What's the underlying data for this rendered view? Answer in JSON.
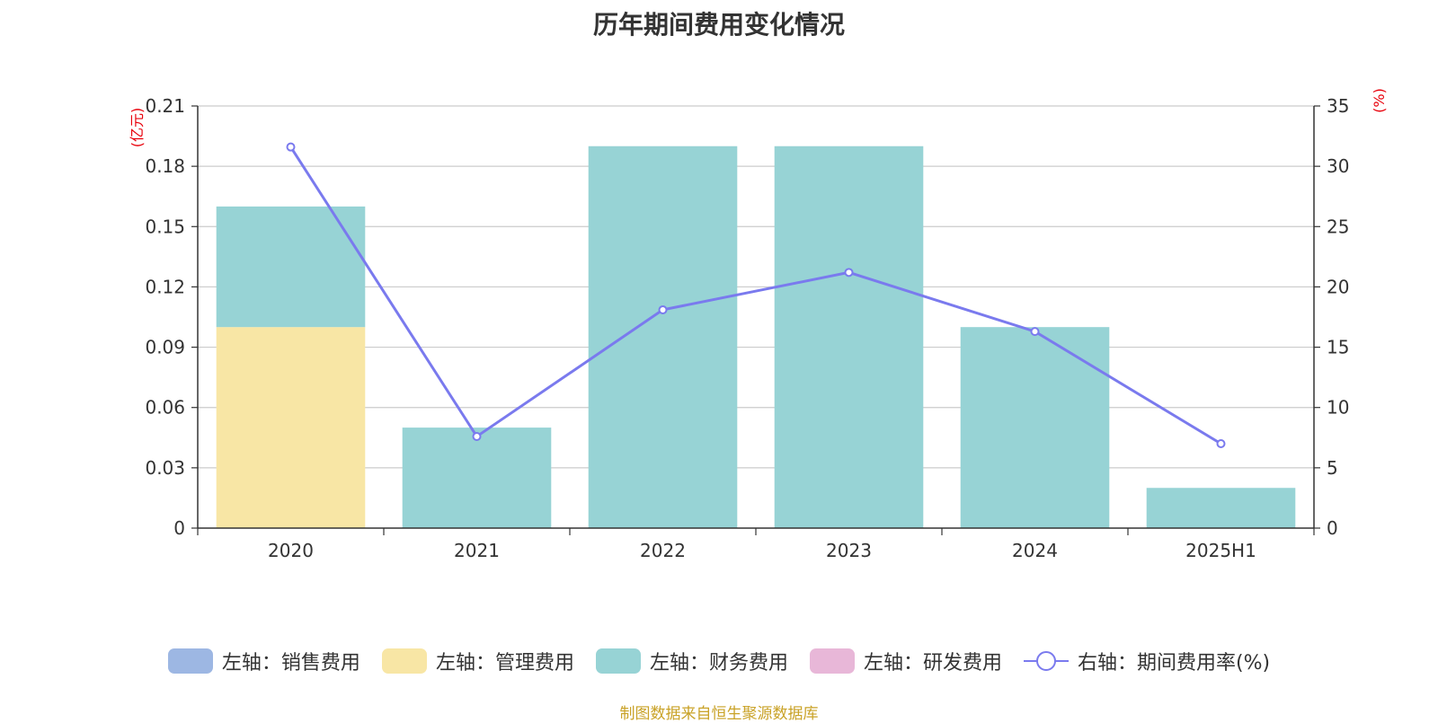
{
  "chart_data": {
    "type": "bar",
    "title": "历年期间费用变化情况",
    "categories": [
      "2020",
      "2021",
      "2022",
      "2023",
      "2024",
      "2025H1"
    ],
    "left_axis": {
      "unit": "(亿元)",
      "ylim": [
        0,
        0.21
      ],
      "ticks": [
        0,
        0.03,
        0.06,
        0.09,
        0.12,
        0.15,
        0.18,
        0.21
      ],
      "tick_labels": [
        "0",
        "0.03",
        "0.06",
        "0.09",
        "0.12",
        "0.15",
        "0.18",
        "0.21"
      ]
    },
    "right_axis": {
      "unit": "(%)",
      "ylim": [
        0,
        35
      ],
      "ticks": [
        0,
        5,
        10,
        15,
        20,
        25,
        30,
        35
      ],
      "tick_labels": [
        "0",
        "5",
        "10",
        "15",
        "20",
        "25",
        "30",
        "35"
      ]
    },
    "bar_series": [
      {
        "name": "左轴：销售费用",
        "color": "#9db7e3",
        "values": [
          0,
          0,
          0,
          0,
          0,
          0
        ]
      },
      {
        "name": "左轴：管理费用",
        "color": "#f8e6a5",
        "values": [
          0.1,
          0,
          0,
          0,
          0,
          0
        ]
      },
      {
        "name": "左轴：财务费用",
        "color": "#97d3d5",
        "values": [
          0.06,
          0.05,
          0.19,
          0.19,
          0.1,
          0.02
        ]
      },
      {
        "name": "左轴：研发费用",
        "color": "#e8b7d8",
        "values": [
          0,
          0,
          0,
          0,
          0,
          0
        ]
      }
    ],
    "line_series": {
      "name": "右轴：期间费用率(%)",
      "color": "#7a7aee",
      "values": [
        31.6,
        7.6,
        18.1,
        21.2,
        16.3,
        7.0
      ]
    },
    "grid": true,
    "legend_position": "bottom"
  },
  "source_note": "制图数据来自恒生聚源数据库"
}
